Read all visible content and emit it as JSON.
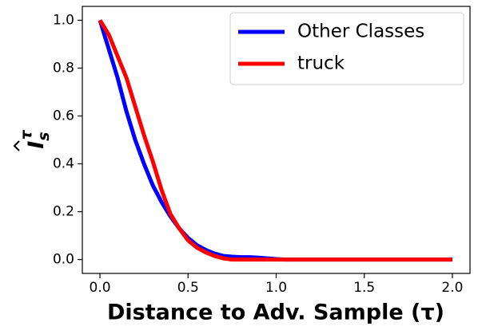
{
  "chart_data": {
    "type": "line",
    "x_label": "Distance to Adv. Sample (τ)",
    "y_label": [
      "I",
      "s",
      "τ"
    ],
    "x": [
      0,
      0.05,
      0.1,
      0.15,
      0.2,
      0.25,
      0.3,
      0.35,
      0.4,
      0.45,
      0.5,
      0.55,
      0.6,
      0.65,
      0.7,
      0.75,
      0.8,
      0.85,
      0.9,
      0.95,
      1.0,
      1.05,
      1.1,
      1.15,
      1.2,
      1.25,
      1.3,
      1.35,
      1.4,
      1.45,
      1.5,
      1.55,
      1.6,
      1.65,
      1.7,
      1.75,
      1.8,
      1.85,
      1.9,
      1.95,
      2.0
    ],
    "series": [
      {
        "name": "Other Classes",
        "color": "#0000ff",
        "values": [
          1.0,
          0.88,
          0.76,
          0.62,
          0.5,
          0.4,
          0.31,
          0.24,
          0.18,
          0.13,
          0.09,
          0.06,
          0.04,
          0.025,
          0.015,
          0.012,
          0.01,
          0.01,
          0.008,
          0.005,
          0.002,
          0,
          0,
          0,
          0,
          0,
          0,
          0,
          0,
          0,
          0,
          0,
          0,
          0,
          0,
          0,
          0,
          0,
          0,
          0,
          0
        ]
      },
      {
        "name": "truck",
        "color": "#ff0000",
        "values": [
          1.0,
          0.94,
          0.85,
          0.76,
          0.64,
          0.52,
          0.41,
          0.29,
          0.19,
          0.13,
          0.08,
          0.05,
          0.03,
          0.015,
          0.005,
          0,
          0,
          0,
          0,
          0,
          0,
          0,
          0,
          0,
          0,
          0,
          0,
          0,
          0,
          0,
          0,
          0,
          0,
          0,
          0,
          0,
          0,
          0,
          0,
          0,
          0
        ]
      }
    ],
    "xlim": [
      -0.1,
      2.1
    ],
    "ylim": [
      -0.058,
      1.058
    ],
    "xticks": [
      {
        "value": 0,
        "label": "0.0"
      },
      {
        "value": 0.5,
        "label": "0.5"
      },
      {
        "value": 1,
        "label": "1.0"
      },
      {
        "value": 1.5,
        "label": "1.5"
      },
      {
        "value": 2,
        "label": "2.0"
      }
    ],
    "yticks": [
      {
        "value": 0,
        "label": "0.0"
      },
      {
        "value": 0.2,
        "label": "0.2"
      },
      {
        "value": 0.4,
        "label": "0.4"
      },
      {
        "value": 0.6,
        "label": "0.6"
      },
      {
        "value": 0.8,
        "label": "0.8"
      },
      {
        "value": 1,
        "label": "1.0"
      }
    ],
    "grid": false,
    "legend": "upper right"
  }
}
